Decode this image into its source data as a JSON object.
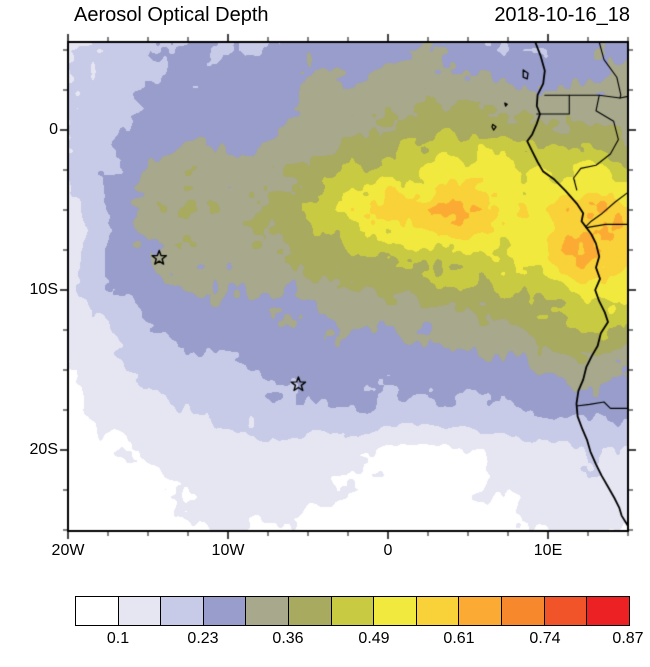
{
  "header": {
    "title": "Aerosol Optical Depth",
    "date": "2018-10-16_18"
  },
  "chart_data": {
    "type": "heatmap",
    "title": "Aerosol Optical Depth",
    "timestamp": "2018-10-16_18",
    "projection": {
      "lon_range": [
        -20,
        15
      ],
      "lat_range": [
        -25.06,
        5.5
      ]
    },
    "axes": {
      "x_ticks": [
        {
          "lon": -20,
          "label": "20W"
        },
        {
          "lon": -10,
          "label": "10W"
        },
        {
          "lon": 0,
          "label": "0"
        },
        {
          "lon": 10,
          "label": "10E"
        }
      ],
      "y_ticks": [
        {
          "lat": 0,
          "label": "0"
        },
        {
          "lat": -10,
          "label": "10S"
        },
        {
          "lat": -20,
          "label": "20S"
        }
      ],
      "major_tick_interval": 10,
      "minor_tick_interval": 2.5
    },
    "levels": {
      "min": 0.1,
      "max": 0.87,
      "n_colors": 13
    },
    "colors": [
      "#ffffff",
      "#e6e6f3",
      "#c8cbe7",
      "#989dcb",
      "#a7a88c",
      "#a8aa5f",
      "#c8ca41",
      "#f2e93f",
      "#f9d138",
      "#fbab33",
      "#f8882c",
      "#f25429",
      "#eb2123"
    ],
    "colorbar": {
      "labels": [
        "0.1",
        "0.23",
        "0.36",
        "0.49",
        "0.61",
        "0.74",
        "0.87"
      ],
      "label_boundaries": [
        1,
        3,
        5,
        7,
        9,
        11,
        13
      ]
    },
    "markers": [
      {
        "lon": -14.3,
        "lat": -8.0,
        "symbol": "open-star"
      },
      {
        "lon": -5.6,
        "lat": -15.9,
        "symbol": "open-star"
      }
    ],
    "grid": {
      "lon_start": -20,
      "lon_step": 2.5,
      "lat_start": 5,
      "lat_step": -2.5,
      "values": [
        [
          0.15,
          0.18,
          0.22,
          0.24,
          0.22,
          0.24,
          0.27,
          0.25,
          0.27,
          0.29,
          0.25,
          0.22,
          0.24,
          0.27,
          0.29
        ],
        [
          0.16,
          0.19,
          0.23,
          0.26,
          0.25,
          0.27,
          0.3,
          0.32,
          0.33,
          0.34,
          0.32,
          0.3,
          0.3,
          0.31,
          0.3
        ],
        [
          0.17,
          0.21,
          0.26,
          0.28,
          0.27,
          0.29,
          0.32,
          0.34,
          0.36,
          0.4,
          0.42,
          0.4,
          0.38,
          0.36,
          0.34
        ],
        [
          0.18,
          0.23,
          0.29,
          0.34,
          0.3,
          0.32,
          0.36,
          0.4,
          0.45,
          0.5,
          0.52,
          0.5,
          0.46,
          0.5,
          0.45
        ],
        [
          0.13,
          0.24,
          0.31,
          0.38,
          0.34,
          0.36,
          0.42,
          0.5,
          0.58,
          0.62,
          0.6,
          0.55,
          0.55,
          0.62,
          0.6
        ],
        [
          0.13,
          0.24,
          0.29,
          0.34,
          0.32,
          0.34,
          0.38,
          0.42,
          0.46,
          0.48,
          0.5,
          0.52,
          0.55,
          0.65,
          0.6
        ],
        [
          0.14,
          0.22,
          0.27,
          0.3,
          0.3,
          0.3,
          0.32,
          0.34,
          0.36,
          0.38,
          0.4,
          0.42,
          0.45,
          0.52,
          0.5
        ],
        [
          0.12,
          0.16,
          0.22,
          0.25,
          0.26,
          0.26,
          0.28,
          0.28,
          0.3,
          0.3,
          0.32,
          0.34,
          0.38,
          0.42,
          0.4
        ],
        [
          0.1,
          0.14,
          0.18,
          0.2,
          0.21,
          0.24,
          0.25,
          0.26,
          0.25,
          0.25,
          0.26,
          0.28,
          0.3,
          0.32,
          0.3
        ],
        [
          0.09,
          0.12,
          0.14,
          0.16,
          0.18,
          0.2,
          0.22,
          0.23,
          0.22,
          0.21,
          0.22,
          0.22,
          0.24,
          0.26,
          0.24
        ],
        [
          0.08,
          0.09,
          0.11,
          0.13,
          0.14,
          0.15,
          0.14,
          0.12,
          0.09,
          0.09,
          0.1,
          0.12,
          0.14,
          0.18,
          0.16
        ],
        [
          0.07,
          0.08,
          0.09,
          0.11,
          0.12,
          0.12,
          0.11,
          0.09,
          0.08,
          0.08,
          0.09,
          0.1,
          0.12,
          0.14,
          0.13
        ],
        [
          0.06,
          0.07,
          0.08,
          0.09,
          0.1,
          0.1,
          0.09,
          0.08,
          0.07,
          0.08,
          0.08,
          0.09,
          0.1,
          0.12,
          0.11
        ]
      ]
    },
    "map": {
      "coastline": [
        [
          9.2,
          5.5
        ],
        [
          9.55,
          4.6
        ],
        [
          9.8,
          3.7
        ],
        [
          9.7,
          2.9
        ],
        [
          9.35,
          2.2
        ],
        [
          9.3,
          1.5
        ],
        [
          9.5,
          1.0
        ],
        [
          9.3,
          0.4
        ],
        [
          9.0,
          -0.3
        ],
        [
          8.7,
          -0.7
        ],
        [
          9.0,
          -1.3
        ],
        [
          9.35,
          -2.0
        ],
        [
          9.7,
          -2.6
        ],
        [
          10.4,
          -3.1
        ],
        [
          11.1,
          -3.8
        ],
        [
          11.8,
          -4.6
        ],
        [
          12.2,
          -5.2
        ],
        [
          12.1,
          -5.7
        ],
        [
          12.4,
          -6.1
        ],
        [
          12.7,
          -6.5
        ],
        [
          13.0,
          -7.1
        ],
        [
          13.2,
          -7.9
        ],
        [
          13.0,
          -8.6
        ],
        [
          13.25,
          -9.3
        ],
        [
          12.95,
          -10.0
        ],
        [
          13.2,
          -10.7
        ],
        [
          13.55,
          -11.4
        ],
        [
          13.75,
          -12.0
        ],
        [
          13.3,
          -12.7
        ],
        [
          13.1,
          -13.5
        ],
        [
          12.75,
          -14.1
        ],
        [
          12.4,
          -14.8
        ],
        [
          12.2,
          -15.6
        ],
        [
          11.9,
          -16.3
        ],
        [
          11.78,
          -17.1
        ],
        [
          11.85,
          -17.9
        ],
        [
          12.15,
          -18.7
        ],
        [
          12.45,
          -19.4
        ],
        [
          12.65,
          -20.1
        ],
        [
          13.0,
          -20.9
        ],
        [
          13.35,
          -21.6
        ],
        [
          13.75,
          -22.3
        ],
        [
          14.15,
          -23.0
        ],
        [
          14.45,
          -23.6
        ],
        [
          14.6,
          -24.1
        ],
        [
          15.0,
          -24.75
        ]
      ],
      "borders": [
        [
          [
            9.8,
            2.17
          ],
          [
            11.33,
            2.17
          ],
          [
            11.33,
            1.0
          ],
          [
            9.3,
            1.0
          ]
        ],
        [
          [
            11.33,
            2.17
          ],
          [
            13.2,
            2.17
          ],
          [
            14.5,
            2.0
          ],
          [
            15.0,
            2.1
          ]
        ],
        [
          [
            13.2,
            5.5
          ],
          [
            13.5,
            4.4
          ],
          [
            14.3,
            3.3
          ],
          [
            14.55,
            2.2
          ],
          [
            14.5,
            2.0
          ]
        ],
        [
          [
            13.2,
            2.17
          ],
          [
            13.0,
            1.2
          ],
          [
            14.1,
            0.55
          ],
          [
            14.4,
            -0.6
          ],
          [
            13.9,
            -1.5
          ],
          [
            13.0,
            -2.2
          ],
          [
            12.05,
            -2.4
          ],
          [
            11.6,
            -3.0
          ],
          [
            11.8,
            -3.75
          ]
        ],
        [
          [
            15.0,
            -3.9
          ],
          [
            14.2,
            -4.5
          ],
          [
            13.4,
            -5.2
          ],
          [
            12.7,
            -5.7
          ],
          [
            12.35,
            -6.05
          ]
        ],
        [
          [
            12.4,
            -6.1
          ],
          [
            13.6,
            -5.9
          ],
          [
            15.0,
            -5.9
          ]
        ],
        [
          [
            11.78,
            -17.25
          ],
          [
            12.6,
            -17.15
          ],
          [
            13.5,
            -17.0
          ],
          [
            13.9,
            -17.4
          ],
          [
            15.0,
            -17.4
          ]
        ]
      ],
      "islands": [
        [
          [
            8.45,
            3.75
          ],
          [
            8.75,
            3.55
          ],
          [
            8.7,
            3.2
          ],
          [
            8.45,
            3.3
          ],
          [
            8.45,
            3.75
          ]
        ],
        [
          [
            7.3,
            1.68
          ],
          [
            7.45,
            1.6
          ],
          [
            7.35,
            1.5
          ],
          [
            7.3,
            1.68
          ]
        ],
        [
          [
            6.55,
            0.35
          ],
          [
            6.75,
            0.2
          ],
          [
            6.6,
            0.0
          ],
          [
            6.5,
            0.2
          ],
          [
            6.55,
            0.35
          ]
        ]
      ]
    }
  }
}
